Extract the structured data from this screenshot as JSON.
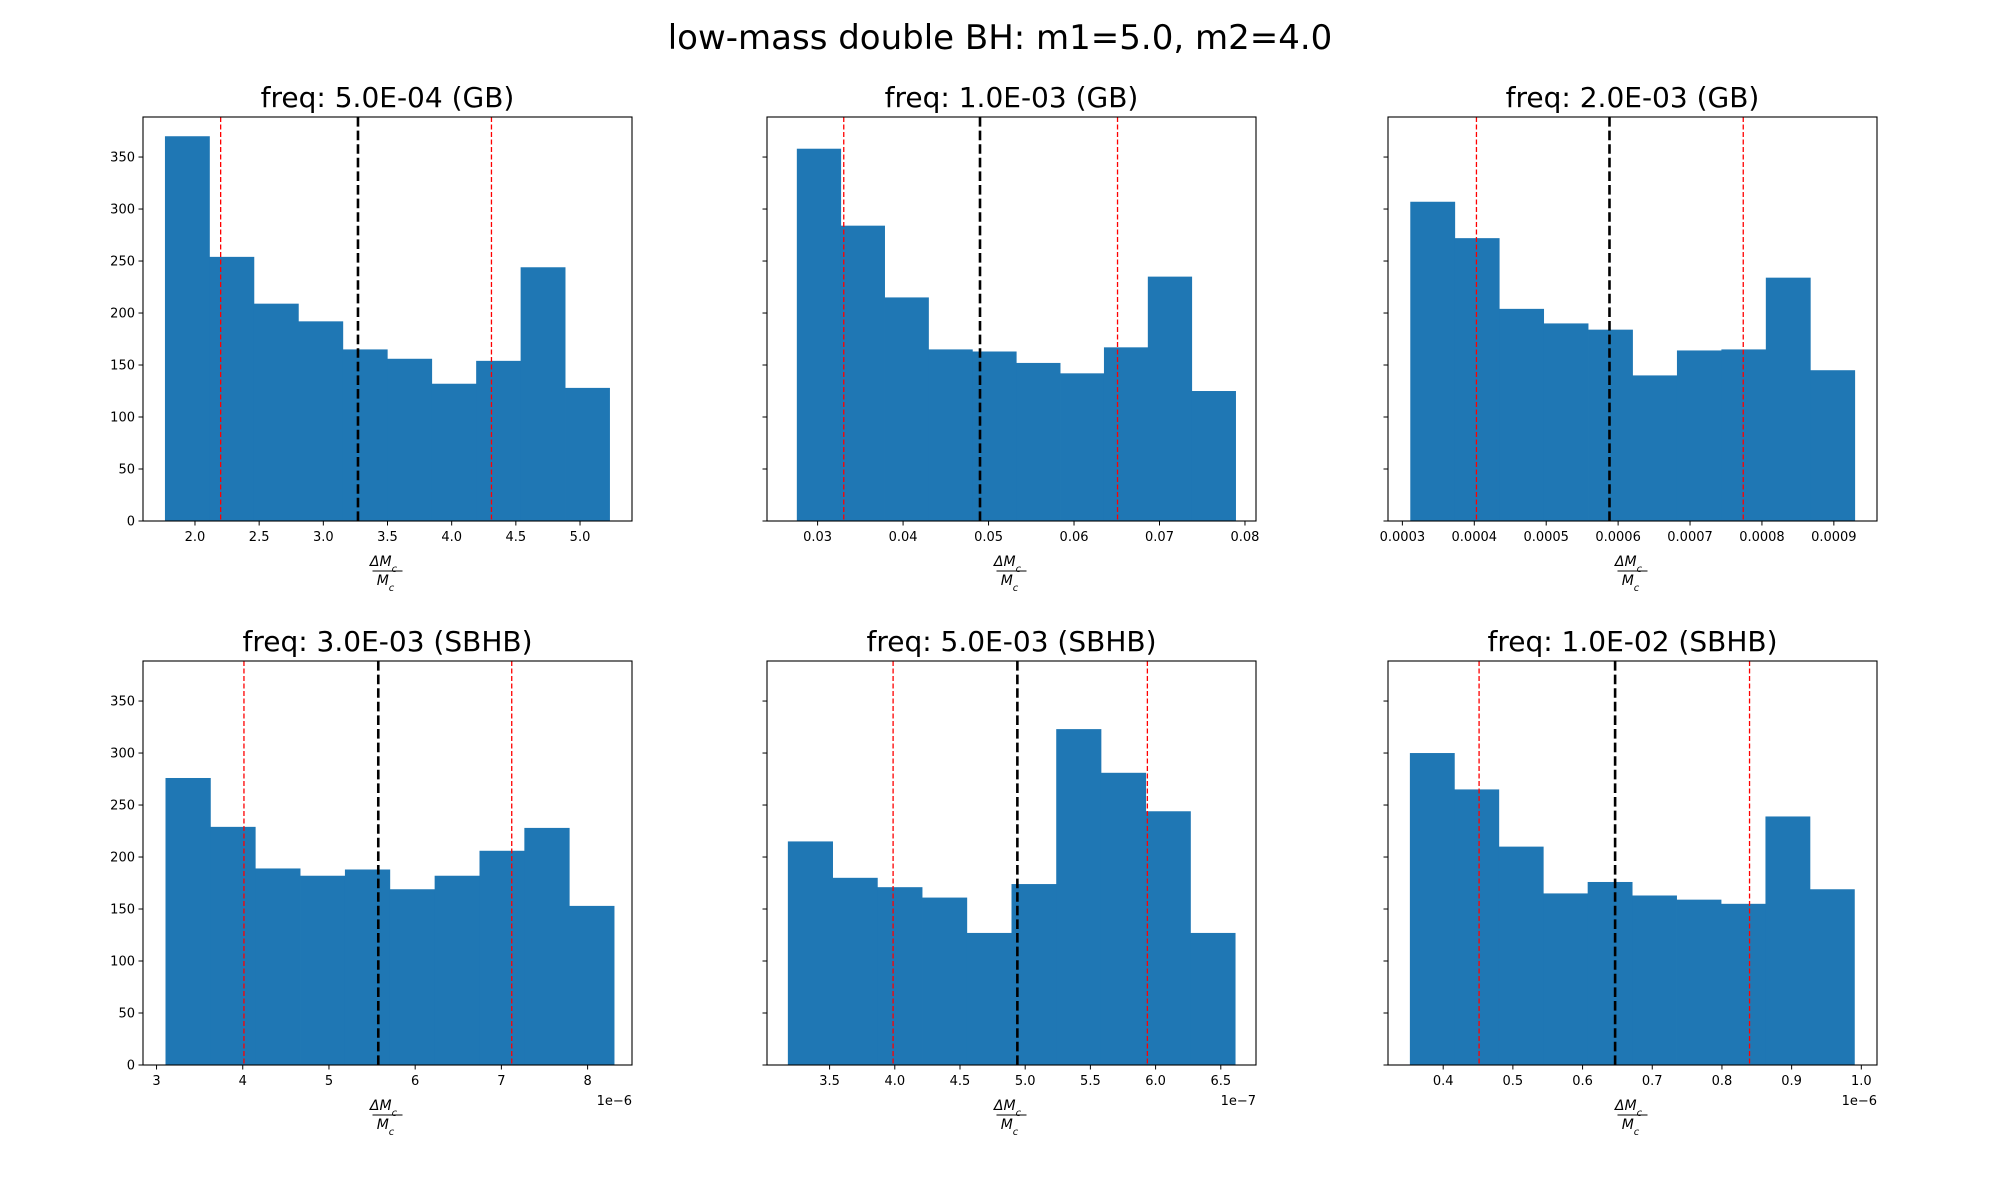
{
  "figure_title": "low-mass double BH: m1=5.0, m2=4.0",
  "colors": {
    "bar": "#1f77b4",
    "median_line": "#000000",
    "quantile_line": "#ff0000",
    "axes": "#000000"
  },
  "chart_data": [
    {
      "type": "bar",
      "title": "freq: 5.0E-04 (GB)",
      "xlabel_num": "ΔM",
      "xlabel_den": "M",
      "xlabel_sub": "c",
      "offset_text": "",
      "bin_range": [
        1.766,
        5.23
      ],
      "values": [
        370,
        254,
        209,
        192,
        165,
        156,
        132,
        154,
        244,
        128
      ],
      "xlim": [
        1.595,
        5.405
      ],
      "ylim": [
        0,
        388.5
      ],
      "xticks": [
        2.0,
        2.5,
        3.0,
        3.5,
        4.0,
        4.5,
        5.0
      ],
      "xtick_labels": [
        "2.0",
        "2.5",
        "3.0",
        "3.5",
        "4.0",
        "4.5",
        "5.0"
      ],
      "yticks": [
        0,
        50,
        100,
        150,
        200,
        250,
        300,
        350
      ],
      "ytick_labels": [
        "0",
        "50",
        "100",
        "150",
        "200",
        "250",
        "300",
        "350"
      ],
      "show_ytick_labels": true,
      "median": 3.27,
      "quantiles": [
        2.2,
        4.31
      ]
    },
    {
      "type": "bar",
      "title": "freq: 1.0E-03 (GB)",
      "xlabel_num": "ΔM",
      "xlabel_den": "M",
      "xlabel_sub": "c",
      "offset_text": "",
      "bin_range": [
        0.02757,
        0.0789
      ],
      "values": [
        358,
        284,
        215,
        165,
        163,
        152,
        142,
        167,
        235,
        125
      ],
      "xlim": [
        0.02408,
        0.08129
      ],
      "ylim": [
        0,
        388.5
      ],
      "xticks": [
        0.03,
        0.04,
        0.05,
        0.06,
        0.07,
        0.08
      ],
      "xtick_labels": [
        "0.03",
        "0.04",
        "0.05",
        "0.06",
        "0.07",
        "0.08"
      ],
      "yticks": [
        0,
        50,
        100,
        150,
        200,
        250,
        300,
        350
      ],
      "ytick_labels": [],
      "show_ytick_labels": false,
      "median": 0.049,
      "quantiles": [
        0.03306,
        0.06509
      ]
    },
    {
      "type": "bar",
      "title": "freq: 2.0E-03 (GB)",
      "xlabel_num": "ΔM",
      "xlabel_den": "M",
      "xlabel_sub": "c",
      "offset_text": "",
      "bin_range": [
        0.000311,
        0.000929
      ],
      "values": [
        307,
        272,
        204,
        190,
        184,
        140,
        164,
        165,
        234,
        145
      ],
      "xlim": [
        0.00028,
        0.00096
      ],
      "ylim": [
        0,
        388.5
      ],
      "xticks": [
        0.0003,
        0.0004,
        0.0005,
        0.0006,
        0.0007,
        0.0008,
        0.0009
      ],
      "xtick_labels": [
        "0.0003",
        "0.0004",
        "0.0005",
        "0.0006",
        "0.0007",
        "0.0008",
        "0.0009"
      ],
      "yticks": [
        0,
        50,
        100,
        150,
        200,
        250,
        300,
        350
      ],
      "ytick_labels": [],
      "show_ytick_labels": false,
      "median": 0.000588,
      "quantiles": [
        0.000403,
        0.000774
      ]
    },
    {
      "type": "bar",
      "title": "freq: 3.0E-03 (SBHB)",
      "xlabel_num": "ΔM",
      "xlabel_den": "M",
      "xlabel_sub": "c",
      "offset_text": "1e−6",
      "bin_range": [
        3.104,
        8.307
      ],
      "values": [
        276,
        229,
        189,
        182,
        188,
        169,
        182,
        206,
        228,
        153
      ],
      "xlim": [
        2.843,
        8.515
      ],
      "ylim": [
        0,
        388.5
      ],
      "xticks": [
        3,
        4,
        5,
        6,
        7,
        8
      ],
      "xtick_labels": [
        "3",
        "4",
        "5",
        "6",
        "7",
        "8"
      ],
      "yticks": [
        0,
        50,
        100,
        150,
        200,
        250,
        300,
        350
      ],
      "ytick_labels": [
        "0",
        "50",
        "100",
        "150",
        "200",
        "250",
        "300",
        "350"
      ],
      "show_ytick_labels": true,
      "median": 5.572,
      "quantiles": [
        4.014,
        7.12
      ]
    },
    {
      "type": "bar",
      "title": "freq: 5.0E-03 (SBHB)",
      "xlabel_num": "ΔM",
      "xlabel_den": "M",
      "xlabel_sub": "c",
      "offset_text": "1e−7",
      "bin_range": [
        3.18,
        6.61
      ],
      "values": [
        215,
        180,
        171,
        161,
        127,
        174,
        323,
        281,
        244,
        127
      ],
      "xlim": [
        3.02,
        6.77
      ],
      "ylim": [
        0,
        388.5
      ],
      "xticks": [
        3.5,
        4.0,
        4.5,
        5.0,
        5.5,
        6.0,
        6.5
      ],
      "xtick_labels": [
        "3.5",
        "4.0",
        "4.5",
        "5.0",
        "5.5",
        "6.0",
        "6.5"
      ],
      "yticks": [
        0,
        50,
        100,
        150,
        200,
        250,
        300,
        350
      ],
      "ytick_labels": [],
      "show_ytick_labels": false,
      "median": 4.94,
      "quantiles": [
        3.987,
        5.937
      ]
    },
    {
      "type": "bar",
      "title": "freq: 1.0E-02 (SBHB)",
      "xlabel_num": "ΔM",
      "xlabel_den": "M",
      "xlabel_sub": "c",
      "offset_text": "1e−6",
      "bin_range": [
        0.3522,
        0.99
      ],
      "values": [
        300,
        265,
        210,
        165,
        176,
        163,
        159,
        155,
        239,
        169
      ],
      "xlim": [
        0.3208,
        1.0225
      ],
      "ylim": [
        0,
        388.5
      ],
      "xticks": [
        0.4,
        0.5,
        0.6,
        0.7,
        0.8,
        0.9,
        1.0
      ],
      "xtick_labels": [
        "0.4",
        "0.5",
        "0.6",
        "0.7",
        "0.8",
        "0.9",
        "1.0"
      ],
      "yticks": [
        0,
        50,
        100,
        150,
        200,
        250,
        300,
        350
      ],
      "ytick_labels": [],
      "show_ytick_labels": false,
      "median": 0.6467,
      "quantiles": [
        0.4515,
        0.8396
      ]
    }
  ]
}
